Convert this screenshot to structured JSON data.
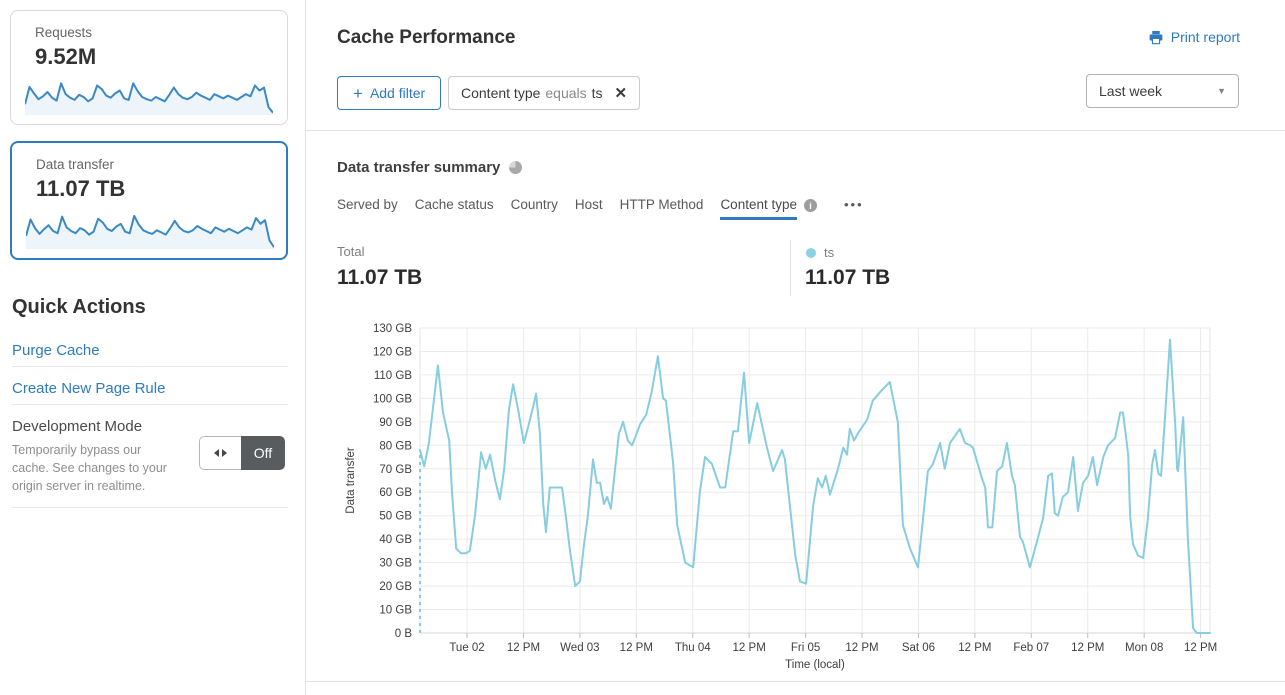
{
  "colors": {
    "accent": "#2f7bbf",
    "chart_line": "#87cde0",
    "spark_line": "#3a89c4",
    "grid": "#ebebeb",
    "axis": "#d4d4d4",
    "legend_dot": "#8ed1e1"
  },
  "sidebar": {
    "cards": [
      {
        "label": "Requests",
        "value": "9.52M",
        "spark": [
          30,
          78,
          60,
          44,
          52,
          64,
          48,
          40,
          88,
          58,
          48,
          42,
          56,
          50,
          38,
          46,
          82,
          72,
          54,
          48,
          60,
          68,
          46,
          42,
          88,
          66,
          50,
          44,
          40,
          50,
          44,
          38,
          56,
          76,
          58,
          48,
          44,
          50,
          62,
          54,
          48,
          42,
          58,
          52,
          46,
          54,
          48,
          42,
          50,
          58,
          52,
          82,
          68,
          76,
          22,
          6
        ]
      },
      {
        "label": "Data transfer",
        "value": "11.07 TB",
        "selected": true,
        "spark": [
          36,
          82,
          58,
          42,
          55,
          66,
          50,
          44,
          90,
          60,
          50,
          44,
          58,
          52,
          40,
          48,
          84,
          74,
          56,
          50,
          62,
          70,
          48,
          44,
          92,
          68,
          52,
          46,
          42,
          52,
          46,
          40,
          58,
          78,
          60,
          50,
          46,
          52,
          64,
          56,
          50,
          44,
          60,
          54,
          48,
          56,
          50,
          44,
          52,
          60,
          54,
          86,
          70,
          80,
          24,
          5
        ]
      }
    ],
    "quick_actions": {
      "title": "Quick Actions",
      "links": [
        {
          "label": "Purge Cache"
        },
        {
          "label": "Create New Page Rule"
        }
      ],
      "dev_mode": {
        "title": "Development Mode",
        "description": "Temporarily bypass our cache. See changes to your origin server in realtime.",
        "toggle_label": "Off"
      }
    }
  },
  "header": {
    "title": "Cache Performance",
    "print_label": "Print report",
    "add_filter": {
      "plus": "+",
      "label": "Add filter"
    },
    "filter_chip": {
      "field": "Content type",
      "operator": "equals",
      "value": "ts",
      "close_glyph": "✕"
    },
    "time_range": {
      "value": "Last week",
      "caret_glyph": "▼"
    }
  },
  "summary": {
    "title": "Data transfer summary",
    "tabs": [
      {
        "label": "Served by"
      },
      {
        "label": "Cache status"
      },
      {
        "label": "Country"
      },
      {
        "label": "Host"
      },
      {
        "label": "HTTP Method"
      },
      {
        "label": "Content type",
        "active": true
      }
    ],
    "info_glyph": "i",
    "more_glyph": "•••",
    "total_label": "Total",
    "total_value": "11.07 TB",
    "legend": {
      "name": "ts",
      "value": "11.07 TB"
    }
  },
  "chart_data": {
    "type": "line",
    "title": "Data transfer summary",
    "xlabel": "Time (local)",
    "ylabel": "Data transfer",
    "x_range_hours": [
      0,
      168
    ],
    "ylim_gb": [
      0,
      130
    ],
    "grid": true,
    "y_ticks": [
      "0 B",
      "10 GB",
      "20 GB",
      "30 GB",
      "40 GB",
      "50 GB",
      "60 GB",
      "70 GB",
      "80 GB",
      "90 GB",
      "100 GB",
      "110 GB",
      "120 GB",
      "130 GB"
    ],
    "x_ticks": [
      {
        "t": 10,
        "label": "Tue 02"
      },
      {
        "t": 22,
        "label": "12 PM"
      },
      {
        "t": 34,
        "label": "Wed 03"
      },
      {
        "t": 46,
        "label": "12 PM"
      },
      {
        "t": 58,
        "label": "Thu 04"
      },
      {
        "t": 70,
        "label": "12 PM"
      },
      {
        "t": 82,
        "label": "Fri 05"
      },
      {
        "t": 94,
        "label": "12 PM"
      },
      {
        "t": 106,
        "label": "Sat 06"
      },
      {
        "t": 118,
        "label": "12 PM"
      },
      {
        "t": 130,
        "label": "Feb 07"
      },
      {
        "t": 142,
        "label": "12 PM"
      },
      {
        "t": 154,
        "label": "Mon 08"
      },
      {
        "t": 166,
        "label": "12 PM"
      }
    ],
    "leading_dashed": true,
    "series": [
      {
        "name": "ts",
        "color": "#87cde0",
        "points_t_gb": [
          [
            0,
            78
          ],
          [
            0.9,
            71
          ],
          [
            1.9,
            81
          ],
          [
            3,
            100
          ],
          [
            3.8,
            114
          ],
          [
            4.9,
            94
          ],
          [
            6.2,
            82
          ],
          [
            6.8,
            60
          ],
          [
            7.7,
            36
          ],
          [
            8.7,
            34
          ],
          [
            9.8,
            34
          ],
          [
            10.6,
            35
          ],
          [
            11.7,
            50
          ],
          [
            13,
            77
          ],
          [
            14,
            70
          ],
          [
            14.9,
            76
          ],
          [
            16,
            65
          ],
          [
            17,
            57
          ],
          [
            17.9,
            70
          ],
          [
            18.9,
            95
          ],
          [
            19.8,
            106
          ],
          [
            20.8,
            96
          ],
          [
            22.1,
            81
          ],
          [
            23,
            88
          ],
          [
            24,
            96
          ],
          [
            24.7,
            102
          ],
          [
            25.5,
            85
          ],
          [
            26.2,
            55
          ],
          [
            26.8,
            43
          ],
          [
            27.6,
            62
          ],
          [
            28.9,
            62
          ],
          [
            30.2,
            62
          ],
          [
            31,
            50
          ],
          [
            31.9,
            35
          ],
          [
            33,
            20
          ],
          [
            34,
            22
          ],
          [
            34.9,
            38
          ],
          [
            35.7,
            50
          ],
          [
            36.8,
            74
          ],
          [
            37.6,
            64
          ],
          [
            38.3,
            64
          ],
          [
            39.1,
            55
          ],
          [
            39.8,
            58
          ],
          [
            40.6,
            53
          ],
          [
            41.5,
            70
          ],
          [
            42.3,
            85
          ],
          [
            43.2,
            90
          ],
          [
            44.2,
            82
          ],
          [
            45.1,
            80
          ],
          [
            46.8,
            89
          ],
          [
            48.1,
            93
          ],
          [
            49.3,
            103
          ],
          [
            50.6,
            118
          ],
          [
            51.7,
            100
          ],
          [
            52.3,
            99
          ],
          [
            53.8,
            73
          ],
          [
            54.7,
            46
          ],
          [
            56.4,
            30
          ],
          [
            58.1,
            28
          ],
          [
            59.5,
            60
          ],
          [
            60.6,
            75
          ],
          [
            62.1,
            72
          ],
          [
            63.8,
            62
          ],
          [
            64.9,
            62
          ],
          [
            66.6,
            86
          ],
          [
            67.6,
            86
          ],
          [
            68.9,
            111
          ],
          [
            70,
            81
          ],
          [
            71.7,
            98
          ],
          [
            73.8,
            79
          ],
          [
            75.1,
            69
          ],
          [
            77,
            78
          ],
          [
            77.6,
            74
          ],
          [
            79.8,
            33
          ],
          [
            80.8,
            22
          ],
          [
            82.1,
            21
          ],
          [
            83.6,
            54
          ],
          [
            84.6,
            66
          ],
          [
            85.5,
            62
          ],
          [
            86.3,
            67
          ],
          [
            87.2,
            59
          ],
          [
            88.9,
            70
          ],
          [
            90,
            79
          ],
          [
            90.8,
            76
          ],
          [
            91.4,
            87
          ],
          [
            92.3,
            82
          ],
          [
            93.1,
            85
          ],
          [
            95.1,
            91
          ],
          [
            96.3,
            99
          ],
          [
            98,
            103
          ],
          [
            99.9,
            107
          ],
          [
            101.6,
            90
          ],
          [
            102.7,
            46
          ],
          [
            104.2,
            36
          ],
          [
            105.9,
            28
          ],
          [
            108,
            69
          ],
          [
            109.1,
            72
          ],
          [
            110.6,
            81
          ],
          [
            111.6,
            70
          ],
          [
            112.7,
            81
          ],
          [
            114.8,
            87
          ],
          [
            115.9,
            81
          ],
          [
            117,
            80
          ],
          [
            117.6,
            79
          ],
          [
            119.5,
            66
          ],
          [
            120.2,
            62
          ],
          [
            120.8,
            45
          ],
          [
            121.7,
            45
          ],
          [
            122.7,
            69
          ],
          [
            123.8,
            71
          ],
          [
            124.8,
            81
          ],
          [
            125.9,
            67
          ],
          [
            126.5,
            63
          ],
          [
            127.6,
            41
          ],
          [
            128.2,
            39
          ],
          [
            129.7,
            28
          ],
          [
            131.2,
            39
          ],
          [
            132.5,
            49
          ],
          [
            133.6,
            67
          ],
          [
            134.4,
            68
          ],
          [
            135,
            51
          ],
          [
            135.7,
            50
          ],
          [
            136.7,
            58
          ],
          [
            137.8,
            60
          ],
          [
            138.9,
            75
          ],
          [
            139.9,
            52
          ],
          [
            141,
            64
          ],
          [
            142.1,
            67
          ],
          [
            143.1,
            75
          ],
          [
            144,
            63
          ],
          [
            145.3,
            75
          ],
          [
            146.3,
            80
          ],
          [
            147.8,
            83
          ],
          [
            148.9,
            94
          ],
          [
            149.5,
            94
          ],
          [
            150.6,
            76
          ],
          [
            151,
            50
          ],
          [
            151.6,
            38
          ],
          [
            152.7,
            33
          ],
          [
            153.8,
            32
          ],
          [
            154.8,
            49
          ],
          [
            155.7,
            72
          ],
          [
            156.3,
            78
          ],
          [
            157,
            68
          ],
          [
            157.6,
            67
          ],
          [
            158.5,
            94
          ],
          [
            159.5,
            125
          ],
          [
            160.6,
            89
          ],
          [
            161,
            70
          ],
          [
            161.2,
            69
          ],
          [
            162.3,
            92
          ],
          [
            163.3,
            40
          ],
          [
            164.4,
            2
          ],
          [
            165.2,
            0
          ],
          [
            168,
            0
          ]
        ]
      }
    ]
  }
}
